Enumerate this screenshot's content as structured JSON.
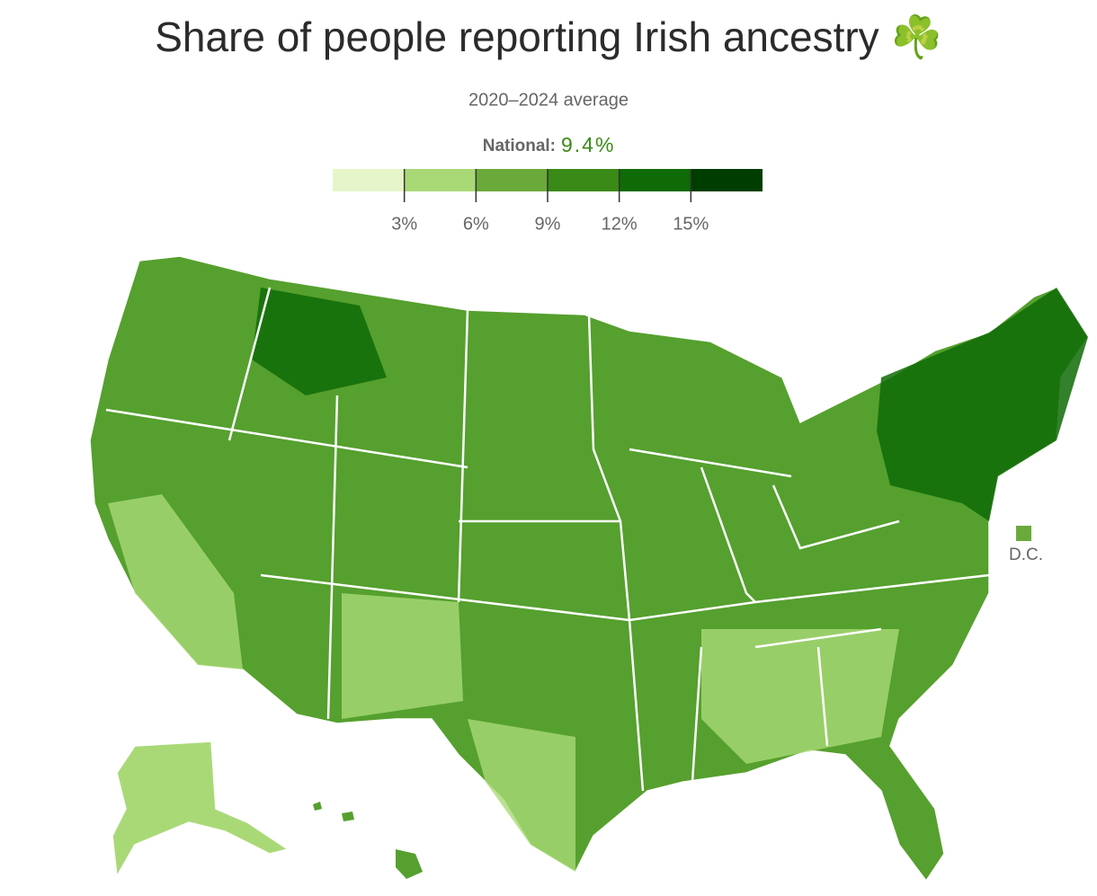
{
  "title": "Share of people reporting Irish ancestry ☘️",
  "subtitle": "2020–2024 average",
  "national": {
    "label": "National:",
    "value": "9.4%"
  },
  "legend": {
    "lim": [
      0,
      18
    ],
    "ticks": [
      {
        "value": 3,
        "label": "3%"
      },
      {
        "value": 6,
        "label": "6%"
      },
      {
        "value": 9,
        "label": "9%"
      },
      {
        "value": 12,
        "label": "12%"
      },
      {
        "value": 15,
        "label": "15%"
      }
    ],
    "colors": [
      "#e6f5c9",
      "#a9d977",
      "#6aaa3a",
      "#3a8a17",
      "#0f6b06",
      "#003d00"
    ]
  },
  "dc": {
    "label": "D.C.",
    "color": "#6aaa3a"
  }
}
